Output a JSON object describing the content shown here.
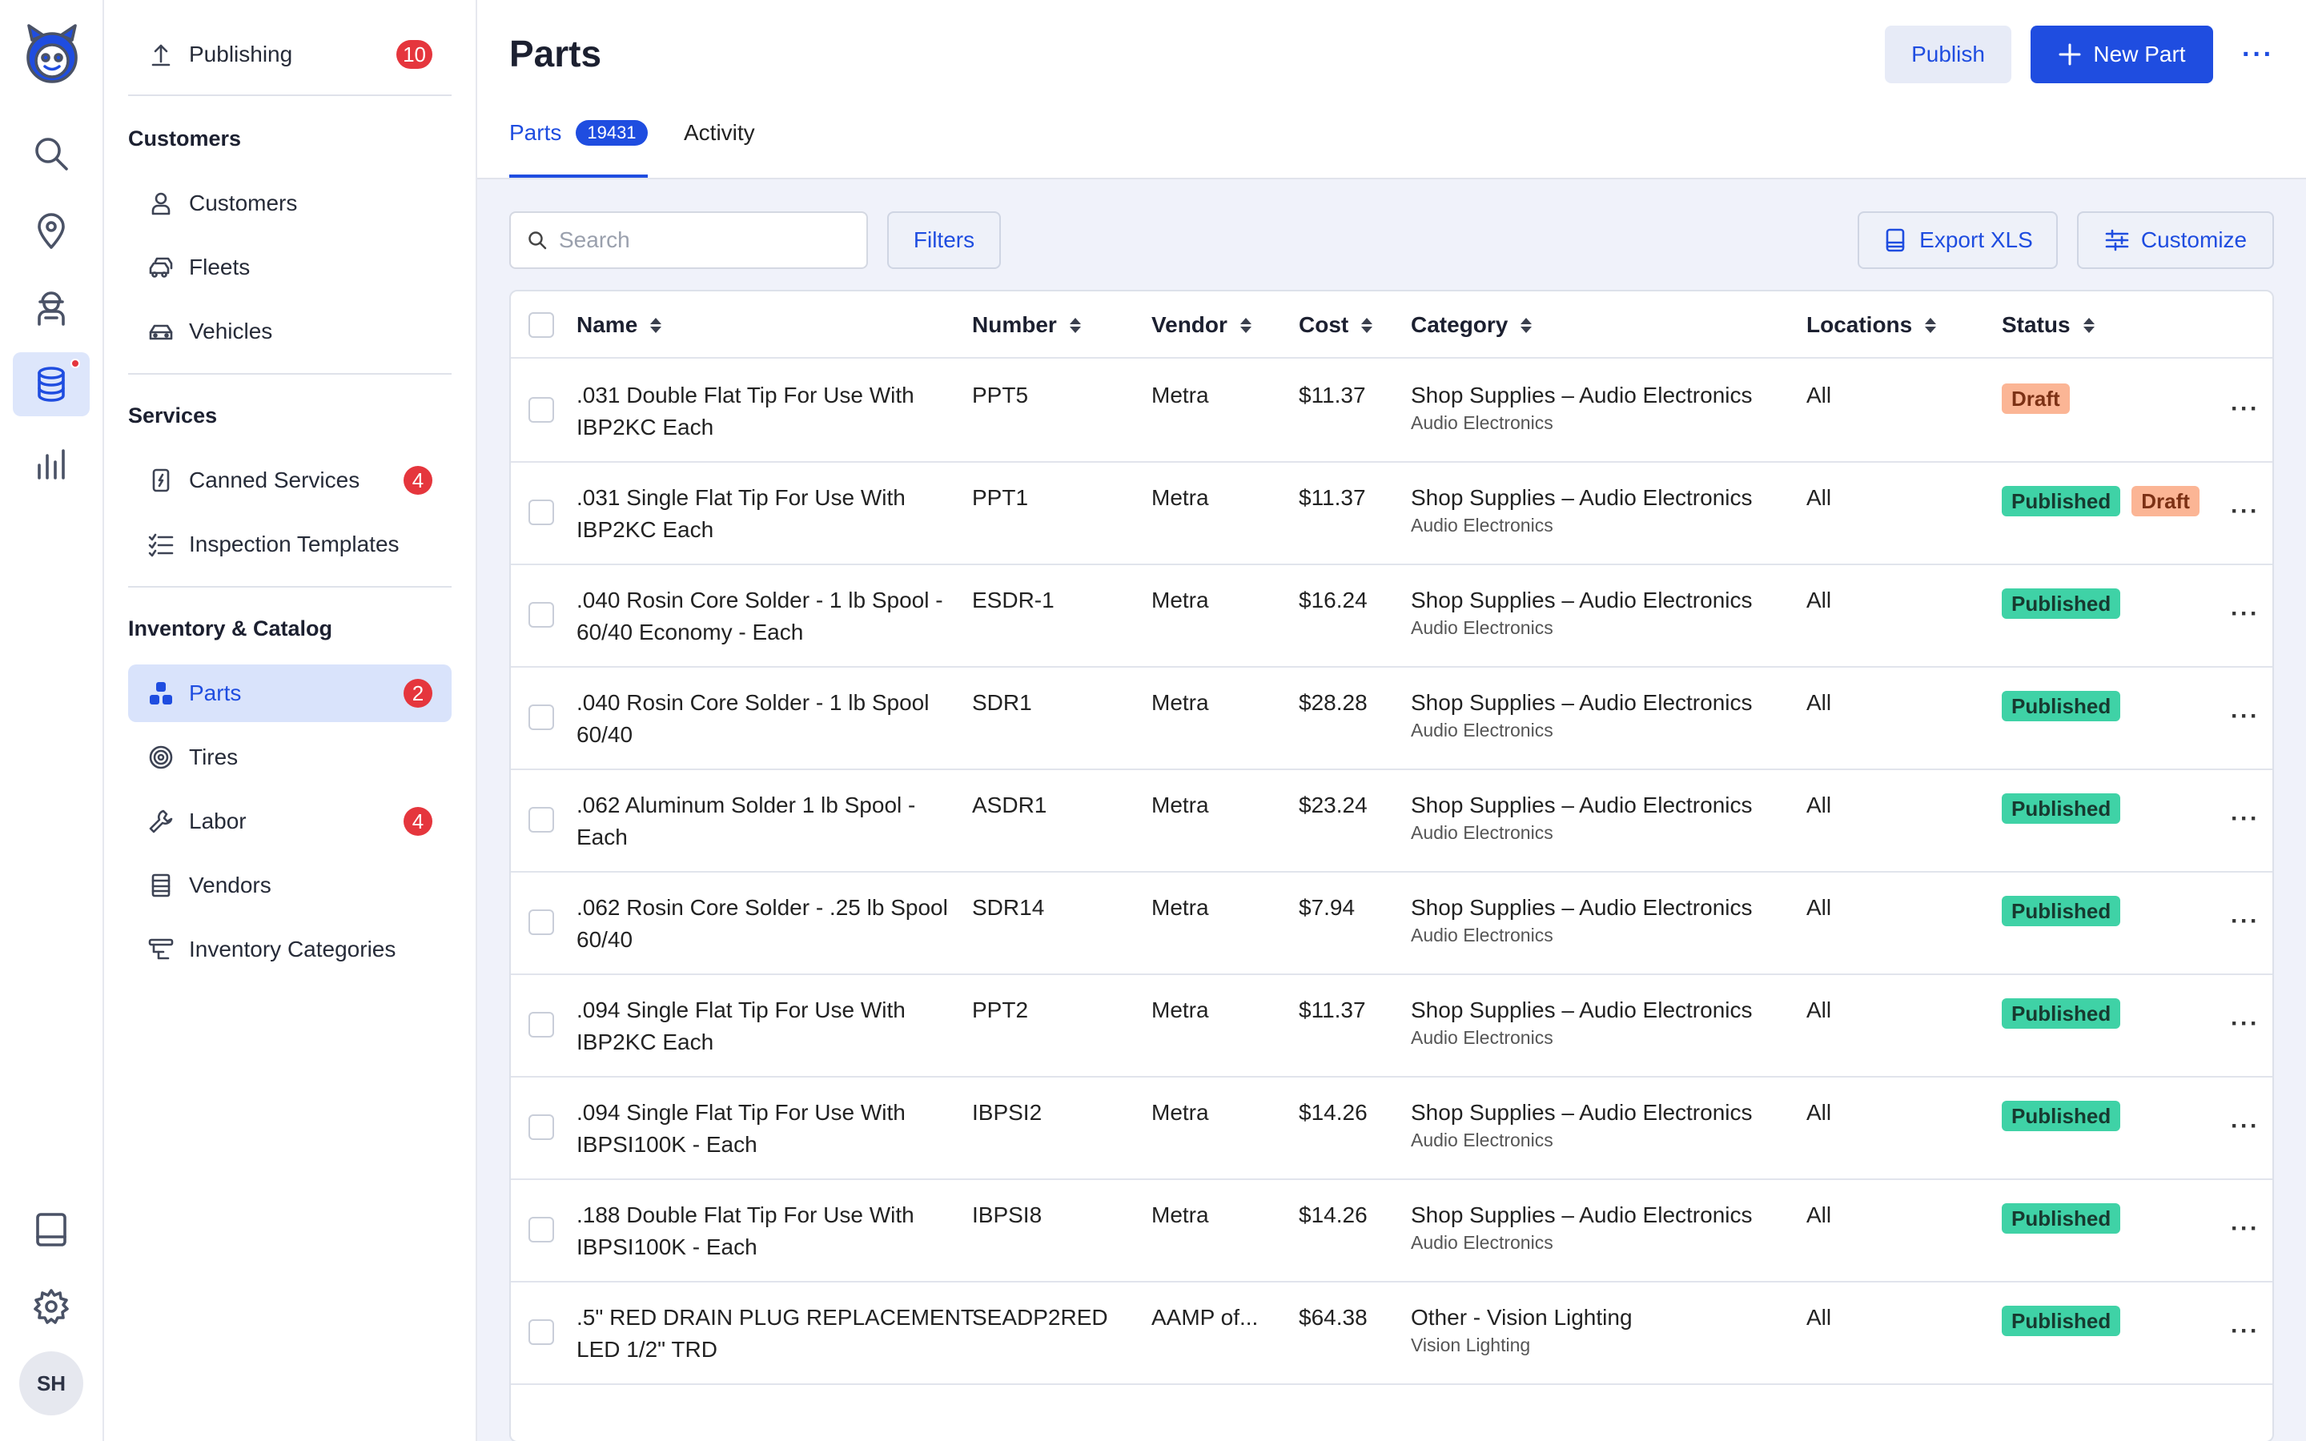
{
  "rail": {
    "icons": [
      "robot-logo-icon",
      "search-icon",
      "map-pin-icon",
      "technician-icon",
      "database-icon",
      "bar-chart-icon",
      "book-icon",
      "gear-icon"
    ],
    "avatar": "SH"
  },
  "sidebar": {
    "publishing": {
      "label": "Publishing",
      "badge": "10"
    },
    "customers_heading": "Customers",
    "customers": [
      {
        "label": "Customers"
      },
      {
        "label": "Fleets"
      },
      {
        "label": "Vehicles"
      }
    ],
    "services_heading": "Services",
    "services": [
      {
        "label": "Canned Services",
        "badge": "4"
      },
      {
        "label": "Inspection Templates"
      }
    ],
    "inventory_heading": "Inventory & Catalog",
    "inventory": [
      {
        "label": "Parts",
        "badge": "2"
      },
      {
        "label": "Tires"
      },
      {
        "label": "Labor",
        "badge": "4"
      },
      {
        "label": "Vendors"
      },
      {
        "label": "Inventory Categories"
      }
    ]
  },
  "header": {
    "title": "Parts",
    "publish_label": "Publish",
    "new_part_label": "New Part",
    "more": "···",
    "tabs": [
      {
        "label": "Parts",
        "count": "19431"
      },
      {
        "label": "Activity"
      }
    ]
  },
  "toolbar": {
    "search_placeholder": "Search",
    "filters_label": "Filters",
    "export_label": "Export XLS",
    "customize_label": "Customize"
  },
  "table": {
    "columns": [
      "Name",
      "Number",
      "Vendor",
      "Cost",
      "Category",
      "Locations",
      "Status"
    ],
    "rows": [
      {
        "name1": ".031 Double Flat Tip For Use With",
        "name2": "IBP2KC Each",
        "number": "PPT5",
        "vendor": "Metra",
        "cost": "$11.37",
        "category": "Shop Supplies – Audio Electronics",
        "subcategory": "Audio Electronics",
        "locations": "All",
        "status": [
          "Draft"
        ]
      },
      {
        "name1": ".031 Single Flat Tip For Use With",
        "name2": "IBP2KC Each",
        "number": "PPT1",
        "vendor": "Metra",
        "cost": "$11.37",
        "category": "Shop Supplies – Audio Electronics",
        "subcategory": "Audio Electronics",
        "locations": "All",
        "status": [
          "Published",
          "Draft"
        ]
      },
      {
        "name1": ".040 Rosin Core Solder - 1 lb Spool -",
        "name2": "60/40 Economy - Each",
        "number": "ESDR-1",
        "vendor": "Metra",
        "cost": "$16.24",
        "category": "Shop Supplies – Audio Electronics",
        "subcategory": "Audio Electronics",
        "locations": "All",
        "status": [
          "Published"
        ]
      },
      {
        "name1": ".040 Rosin Core Solder - 1 lb Spool",
        "name2": "60/40",
        "number": "SDR1",
        "vendor": "Metra",
        "cost": "$28.28",
        "category": "Shop Supplies – Audio Electronics",
        "subcategory": "Audio Electronics",
        "locations": "All",
        "status": [
          "Published"
        ]
      },
      {
        "name1": ".062 Aluminum Solder 1 lb Spool -",
        "name2": "Each",
        "number": "ASDR1",
        "vendor": "Metra",
        "cost": "$23.24",
        "category": "Shop Supplies – Audio Electronics",
        "subcategory": "Audio Electronics",
        "locations": "All",
        "status": [
          "Published"
        ]
      },
      {
        "name1": ".062 Rosin Core Solder - .25 lb Spool",
        "name2": "60/40",
        "number": "SDR14",
        "vendor": "Metra",
        "cost": "$7.94",
        "category": "Shop Supplies – Audio Electronics",
        "subcategory": "Audio Electronics",
        "locations": "All",
        "status": [
          "Published"
        ]
      },
      {
        "name1": ".094 Single Flat Tip For Use With",
        "name2": "IBP2KC Each",
        "number": "PPT2",
        "vendor": "Metra",
        "cost": "$11.37",
        "category": "Shop Supplies – Audio Electronics",
        "subcategory": "Audio Electronics",
        "locations": "All",
        "status": [
          "Published"
        ]
      },
      {
        "name1": ".094 Single Flat Tip For Use With",
        "name2": "IBPSI100K - Each",
        "number": "IBPSI2",
        "vendor": "Metra",
        "cost": "$14.26",
        "category": "Shop Supplies – Audio Electronics",
        "subcategory": "Audio Electronics",
        "locations": "All",
        "status": [
          "Published"
        ]
      },
      {
        "name1": ".188 Double Flat Tip For Use With",
        "name2": "IBPSI100K - Each",
        "number": "IBPSI8",
        "vendor": "Metra",
        "cost": "$14.26",
        "category": "Shop Supplies – Audio Electronics",
        "subcategory": "Audio Electronics",
        "locations": "All",
        "status": [
          "Published"
        ]
      },
      {
        "name1": ".5\" RED DRAIN PLUG REPLACEMENT",
        "name2": "LED 1/2\" TRD",
        "number": "SEADP2RED",
        "vendor": "AAMP of...",
        "cost": "$64.38",
        "category": "Other - Vision Lighting",
        "subcategory": "Vision Lighting",
        "locations": "All",
        "status": [
          "Published"
        ]
      }
    ],
    "row_more": "···"
  },
  "colors": {
    "accent": "#1f4de0",
    "published": "#3fd2a6",
    "draft": "#fbb595",
    "badge": "#e5363d"
  }
}
